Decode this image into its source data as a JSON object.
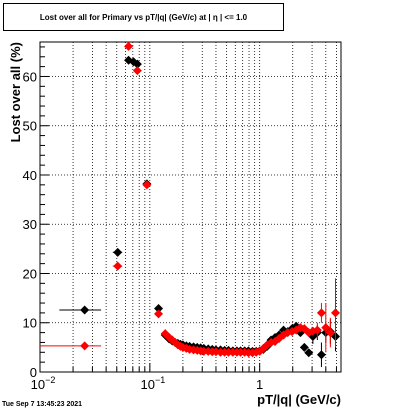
{
  "header": {
    "title": "Lost over all for Primary vs pT/|q| (GeV/c) at |  η | <= 1.0"
  },
  "footer": {
    "timestamp": "Tue Sep  7 13:45:23 2021"
  },
  "colors": {
    "series_black": "#000000",
    "series_red": "#ff0000",
    "grid": "#000000"
  },
  "chart_data": {
    "type": "scatter",
    "title": "Lost over all for Primary vs pT/|q| (GeV/c) at |  η | <= 1.0",
    "xlabel": "pT/|q| (GeV/c)",
    "ylabel": "Lost over all (%)",
    "xscale": "log",
    "xlim": [
      0.01,
      5.5
    ],
    "ylim": [
      0,
      67
    ],
    "grid": true,
    "x_ticklabels": [
      {
        "value": 0.01,
        "label": "10",
        "exp": "−2"
      },
      {
        "value": 0.1,
        "label": "10",
        "exp": "−1"
      },
      {
        "value": 1,
        "label": "1",
        "exp": ""
      }
    ],
    "y_ticklabels": [
      0,
      10,
      20,
      30,
      40,
      50,
      60
    ],
    "series": [
      {
        "color": "#000000",
        "x": [
          0.0255,
          0.051,
          0.064,
          0.071,
          0.077,
          0.094,
          0.12,
          0.138,
          0.15,
          0.16,
          0.17,
          0.18,
          0.19,
          0.2,
          0.215,
          0.23,
          0.25,
          0.27,
          0.29,
          0.31,
          0.34,
          0.37,
          0.4,
          0.44,
          0.48,
          0.52,
          0.57,
          0.62,
          0.67,
          0.73,
          0.79,
          0.86,
          0.93,
          1.0,
          1.08,
          1.17,
          1.27,
          1.38,
          1.5,
          1.65,
          1.8,
          1.97,
          2.15,
          2.35,
          2.55,
          2.8,
          3.05,
          3.35,
          3.65,
          4.0,
          4.4,
          4.9
        ],
        "y": [
          12.6,
          24.3,
          63.3,
          63.0,
          62.5,
          38.2,
          12.9,
          7.5,
          6.7,
          6.3,
          6.0,
          5.8,
          5.6,
          5.5,
          5.3,
          5.2,
          5.1,
          5.0,
          4.9,
          4.8,
          4.7,
          4.6,
          4.5,
          4.5,
          4.4,
          4.4,
          4.3,
          4.3,
          4.3,
          4.3,
          4.3,
          4.2,
          4.2,
          4.3,
          4.6,
          5.2,
          6.5,
          7.0,
          7.5,
          8.5,
          8.2,
          8.8,
          9.3,
          8.0,
          5.0,
          3.9,
          7.2,
          8.0,
          3.5,
          8.0,
          8.2,
          7.2
        ],
        "xerr": [
          [
            0.015,
            0.036
          ],
          [
            0.046,
            0.056
          ],
          [
            0.061,
            0.067
          ],
          [
            0.069,
            0.073
          ],
          [
            0.075,
            0.079
          ],
          [
            0.09,
            0.098
          ],
          null,
          null,
          null,
          null,
          null,
          null,
          null,
          null,
          null,
          null,
          null,
          null,
          null,
          null,
          null,
          null,
          null,
          null,
          null,
          null,
          null,
          null,
          null,
          null,
          null,
          null,
          null,
          null,
          null,
          null,
          null,
          null,
          null,
          null,
          null,
          null,
          null,
          null,
          null,
          null,
          null,
          null,
          null,
          null,
          null,
          null
        ],
        "yerr": [
          null,
          null,
          null,
          null,
          null,
          null,
          null,
          null,
          null,
          null,
          null,
          null,
          null,
          null,
          null,
          null,
          null,
          null,
          null,
          null,
          null,
          null,
          null,
          null,
          null,
          null,
          null,
          null,
          null,
          null,
          null,
          null,
          null,
          null,
          null,
          null,
          null,
          null,
          null,
          null,
          null,
          null,
          null,
          null,
          null,
          null,
          1.5,
          1.5,
          2.5,
          2.0,
          2.5,
          3.0
        ]
      },
      {
        "color": "#ff0000",
        "x": [
          0.0255,
          0.051,
          0.064,
          0.077,
          0.094,
          0.12,
          0.138,
          0.15,
          0.16,
          0.17,
          0.18,
          0.19,
          0.2,
          0.215,
          0.23,
          0.25,
          0.27,
          0.29,
          0.31,
          0.34,
          0.37,
          0.4,
          0.44,
          0.48,
          0.52,
          0.57,
          0.62,
          0.67,
          0.73,
          0.79,
          0.86,
          0.93,
          1.0,
          1.08,
          1.17,
          1.27,
          1.38,
          1.5,
          1.65,
          1.8,
          1.97,
          2.15,
          2.35,
          2.55,
          2.8,
          3.05,
          3.35,
          3.65,
          4.0,
          4.4,
          4.9
        ],
        "y": [
          5.3,
          21.5,
          66.1,
          61.2,
          38.0,
          11.8,
          7.8,
          7.0,
          6.5,
          6.0,
          5.5,
          5.2,
          5.0,
          4.8,
          4.6,
          4.5,
          4.4,
          4.3,
          4.2,
          4.2,
          4.1,
          4.1,
          4.0,
          4.0,
          4.0,
          4.0,
          4.0,
          4.0,
          4.0,
          3.9,
          3.9,
          4.0,
          4.2,
          4.8,
          5.5,
          6.0,
          6.2,
          6.8,
          7.5,
          8.0,
          8.2,
          8.5,
          9.0,
          8.8,
          8.0,
          8.3,
          8.5,
          12.0,
          9.0,
          8.0,
          12.0
        ],
        "xerr": [
          [
            0.01,
            0.036
          ],
          [
            0.046,
            0.056
          ],
          [
            0.061,
            0.067
          ],
          [
            0.075,
            0.079
          ],
          [
            0.09,
            0.098
          ],
          null,
          null,
          null,
          null,
          null,
          null,
          null,
          null,
          null,
          null,
          null,
          null,
          null,
          null,
          null,
          null,
          null,
          null,
          null,
          null,
          null,
          null,
          null,
          null,
          null,
          null,
          null,
          null,
          null,
          null,
          null,
          null,
          null,
          null,
          null,
          null,
          null,
          null,
          null,
          null,
          null,
          null,
          null,
          null,
          null,
          null
        ],
        "yerr": [
          null,
          null,
          null,
          null,
          null,
          null,
          null,
          null,
          null,
          null,
          null,
          null,
          null,
          null,
          null,
          null,
          null,
          null,
          null,
          null,
          null,
          null,
          null,
          null,
          null,
          null,
          null,
          null,
          null,
          null,
          null,
          null,
          null,
          null,
          null,
          null,
          null,
          null,
          null,
          null,
          null,
          null,
          null,
          null,
          null,
          null,
          1.5,
          2.0,
          5.0,
          3.0,
          7.0
        ]
      }
    ]
  }
}
